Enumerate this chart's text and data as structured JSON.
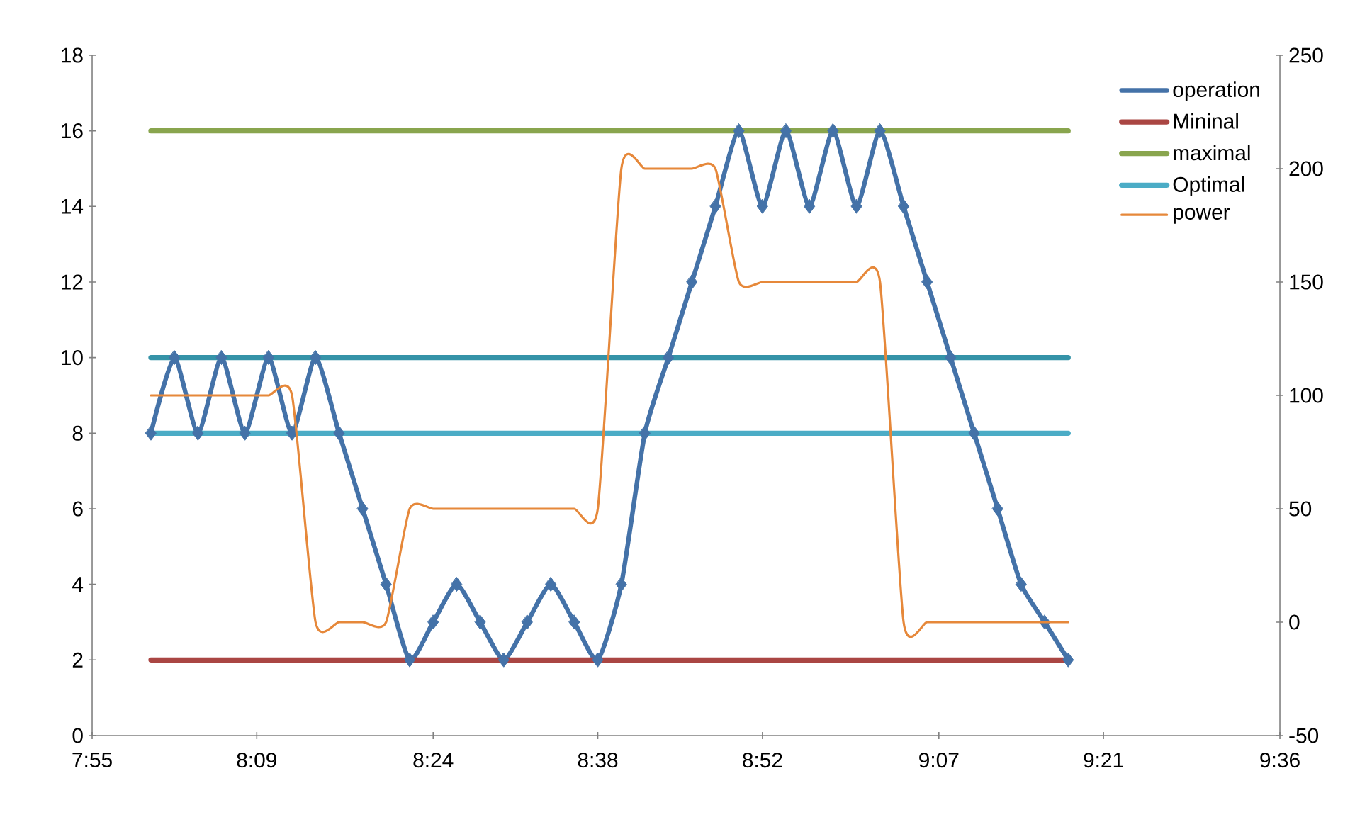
{
  "chart_data": {
    "type": "line",
    "x": [
      8,
      8.0333,
      8.0667,
      8.1,
      8.1333,
      8.1667,
      8.2,
      8.2333,
      8.2667,
      8.3,
      8.3333,
      8.3667,
      8.4,
      8.4333,
      8.4667,
      8.5,
      8.5333,
      8.5667,
      8.6,
      8.6333,
      8.6667,
      8.7,
      8.7333,
      8.7667,
      8.8,
      8.8333,
      8.8667,
      8.9,
      8.9333,
      8.9667,
      9,
      9.0333,
      9.0667,
      9.1,
      9.1333,
      9.1667,
      9.2,
      9.2333,
      9.2667,
      9.3
    ],
    "series": [
      {
        "name": "operation",
        "color": "#4472a8",
        "marker": "diamond",
        "values": [
          8,
          10,
          8,
          10,
          8,
          10,
          8,
          10,
          8,
          6,
          4,
          2,
          3,
          4,
          3,
          2,
          3,
          4,
          3,
          2,
          4,
          8,
          10,
          12,
          14,
          16,
          14,
          16,
          14,
          16,
          14,
          16,
          14,
          12,
          10,
          8,
          6,
          4,
          3,
          2
        ]
      },
      {
        "name": "Mininal",
        "color": "#aa4643",
        "marker": "none",
        "values": [
          2,
          2,
          2,
          2,
          2,
          2,
          2,
          2,
          2,
          2,
          2,
          2,
          2,
          2,
          2,
          2,
          2,
          2,
          2,
          2,
          2,
          2,
          2,
          2,
          2,
          2,
          2,
          2,
          2,
          2,
          2,
          2,
          2,
          2,
          2,
          2,
          2,
          2,
          2,
          2
        ]
      },
      {
        "name": "maximal",
        "color": "#89a54e",
        "marker": "none",
        "values": [
          16,
          16,
          16,
          16,
          16,
          16,
          16,
          16,
          16,
          16,
          16,
          16,
          16,
          16,
          16,
          16,
          16,
          16,
          16,
          16,
          16,
          16,
          16,
          16,
          16,
          16,
          16,
          16,
          16,
          16,
          16,
          16,
          16,
          16,
          16,
          16,
          16,
          16,
          16,
          16
        ]
      },
      {
        "name": "Optimal",
        "color": "#4bacc6",
        "marker": "none",
        "values": [
          8,
          8,
          8,
          8,
          8,
          8,
          8,
          8,
          8,
          8,
          8,
          8,
          8,
          8,
          8,
          8,
          8,
          8,
          8,
          8,
          8,
          8,
          8,
          8,
          8,
          8,
          8,
          8,
          8,
          8,
          8,
          8,
          8,
          8,
          8,
          8,
          8,
          8,
          8,
          8
        ]
      },
      {
        "color": "#3593a8",
        "marker": "none",
        "values": [
          10,
          10,
          10,
          10,
          10,
          10,
          10,
          10,
          10,
          10,
          10,
          10,
          10,
          10,
          10,
          10,
          10,
          10,
          10,
          10,
          10,
          10,
          10,
          10,
          10,
          10,
          10,
          10,
          10,
          10,
          10,
          10,
          10,
          10,
          10,
          10,
          10,
          10,
          10,
          10
        ]
      },
      {
        "name": "power",
        "color": "#e6883a",
        "marker": "none",
        "axis": "y2",
        "values": [
          100,
          100,
          100,
          100,
          100,
          100,
          100,
          0,
          0,
          0,
          0,
          50,
          50,
          50,
          50,
          50,
          50,
          50,
          50,
          50,
          200,
          200,
          200,
          200,
          200,
          150,
          150,
          150,
          150,
          150,
          150,
          150,
          0,
          0,
          0,
          0,
          0,
          0,
          0,
          0
        ]
      }
    ],
    "xlim": [
      7.9167,
      9.6
    ],
    "xticks": [
      {
        "value": 7.9167,
        "label": "7:55"
      },
      {
        "value": 8.15,
        "label": "8:09"
      },
      {
        "value": 8.4,
        "label": "8:24"
      },
      {
        "value": 8.6333,
        "label": "8:38"
      },
      {
        "value": 8.8667,
        "label": "8:52"
      },
      {
        "value": 9.1167,
        "label": "9:07"
      },
      {
        "value": 9.35,
        "label": "9:21"
      },
      {
        "value": 9.6,
        "label": "9:36"
      }
    ],
    "ylim": [
      0,
      18
    ],
    "yticks": [
      0,
      2,
      4,
      6,
      8,
      10,
      12,
      14,
      16,
      18
    ],
    "y2lim": [
      -50,
      250
    ],
    "y2ticks": [
      -50,
      0,
      50,
      100,
      150,
      200,
      250
    ],
    "grid": false,
    "legend": "right"
  }
}
